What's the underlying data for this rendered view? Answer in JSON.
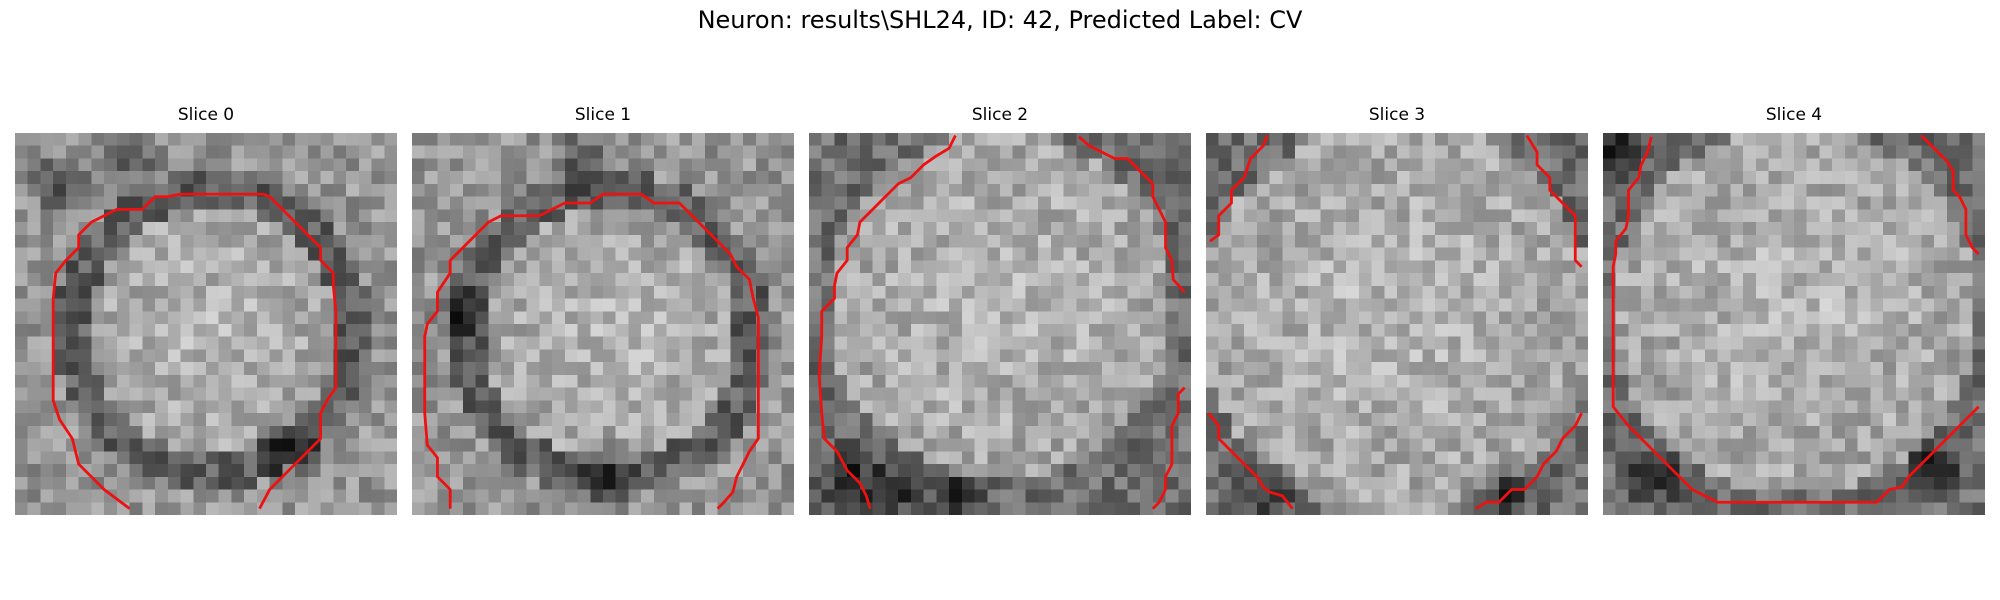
{
  "figure": {
    "title": "Neuron: results\\SHL24, ID: 42, Predicted Label: CV"
  },
  "panels": [
    {
      "title": "Slice 0"
    },
    {
      "title": "Slice 1"
    },
    {
      "title": "Slice 2"
    },
    {
      "title": "Slice 3"
    },
    {
      "title": "Slice 4"
    }
  ],
  "colors": {
    "contour": "#ee1111",
    "background": "#ffffff"
  }
}
